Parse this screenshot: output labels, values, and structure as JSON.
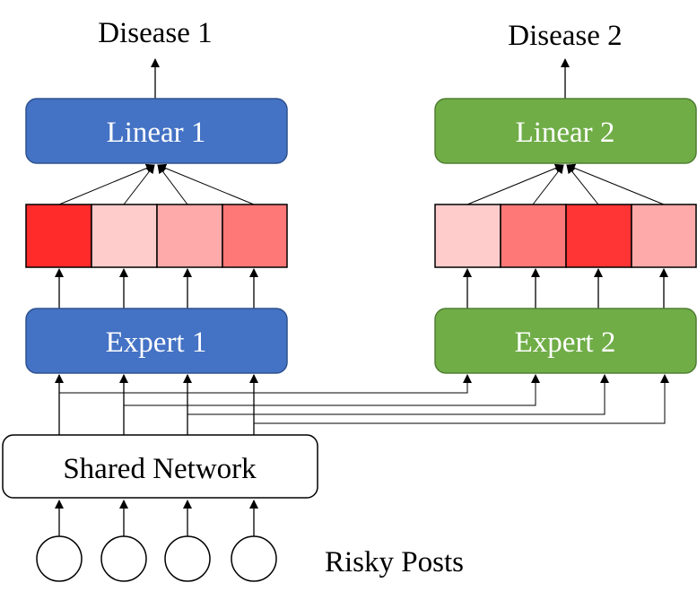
{
  "labels": {
    "disease_1": "Disease 1",
    "disease_2": "Disease 2",
    "linear_1": "Linear 1",
    "linear_2": "Linear 2",
    "expert_1": "Expert 1",
    "expert_2": "Expert 2",
    "shared_network": "Shared Network",
    "risky_posts": "Risky Posts"
  },
  "colors": {
    "blue_fill": "#4472c4",
    "blue_stroke": "#2f528f",
    "green_fill": "#70ad47",
    "green_stroke": "#507e32",
    "gate1": [
      "#ff2b2b",
      "#ffcccc",
      "#ffaaaa",
      "#ff7878"
    ],
    "gate2": [
      "#ffcccc",
      "#ff7878",
      "#ff3434",
      "#ffaaaa"
    ]
  }
}
